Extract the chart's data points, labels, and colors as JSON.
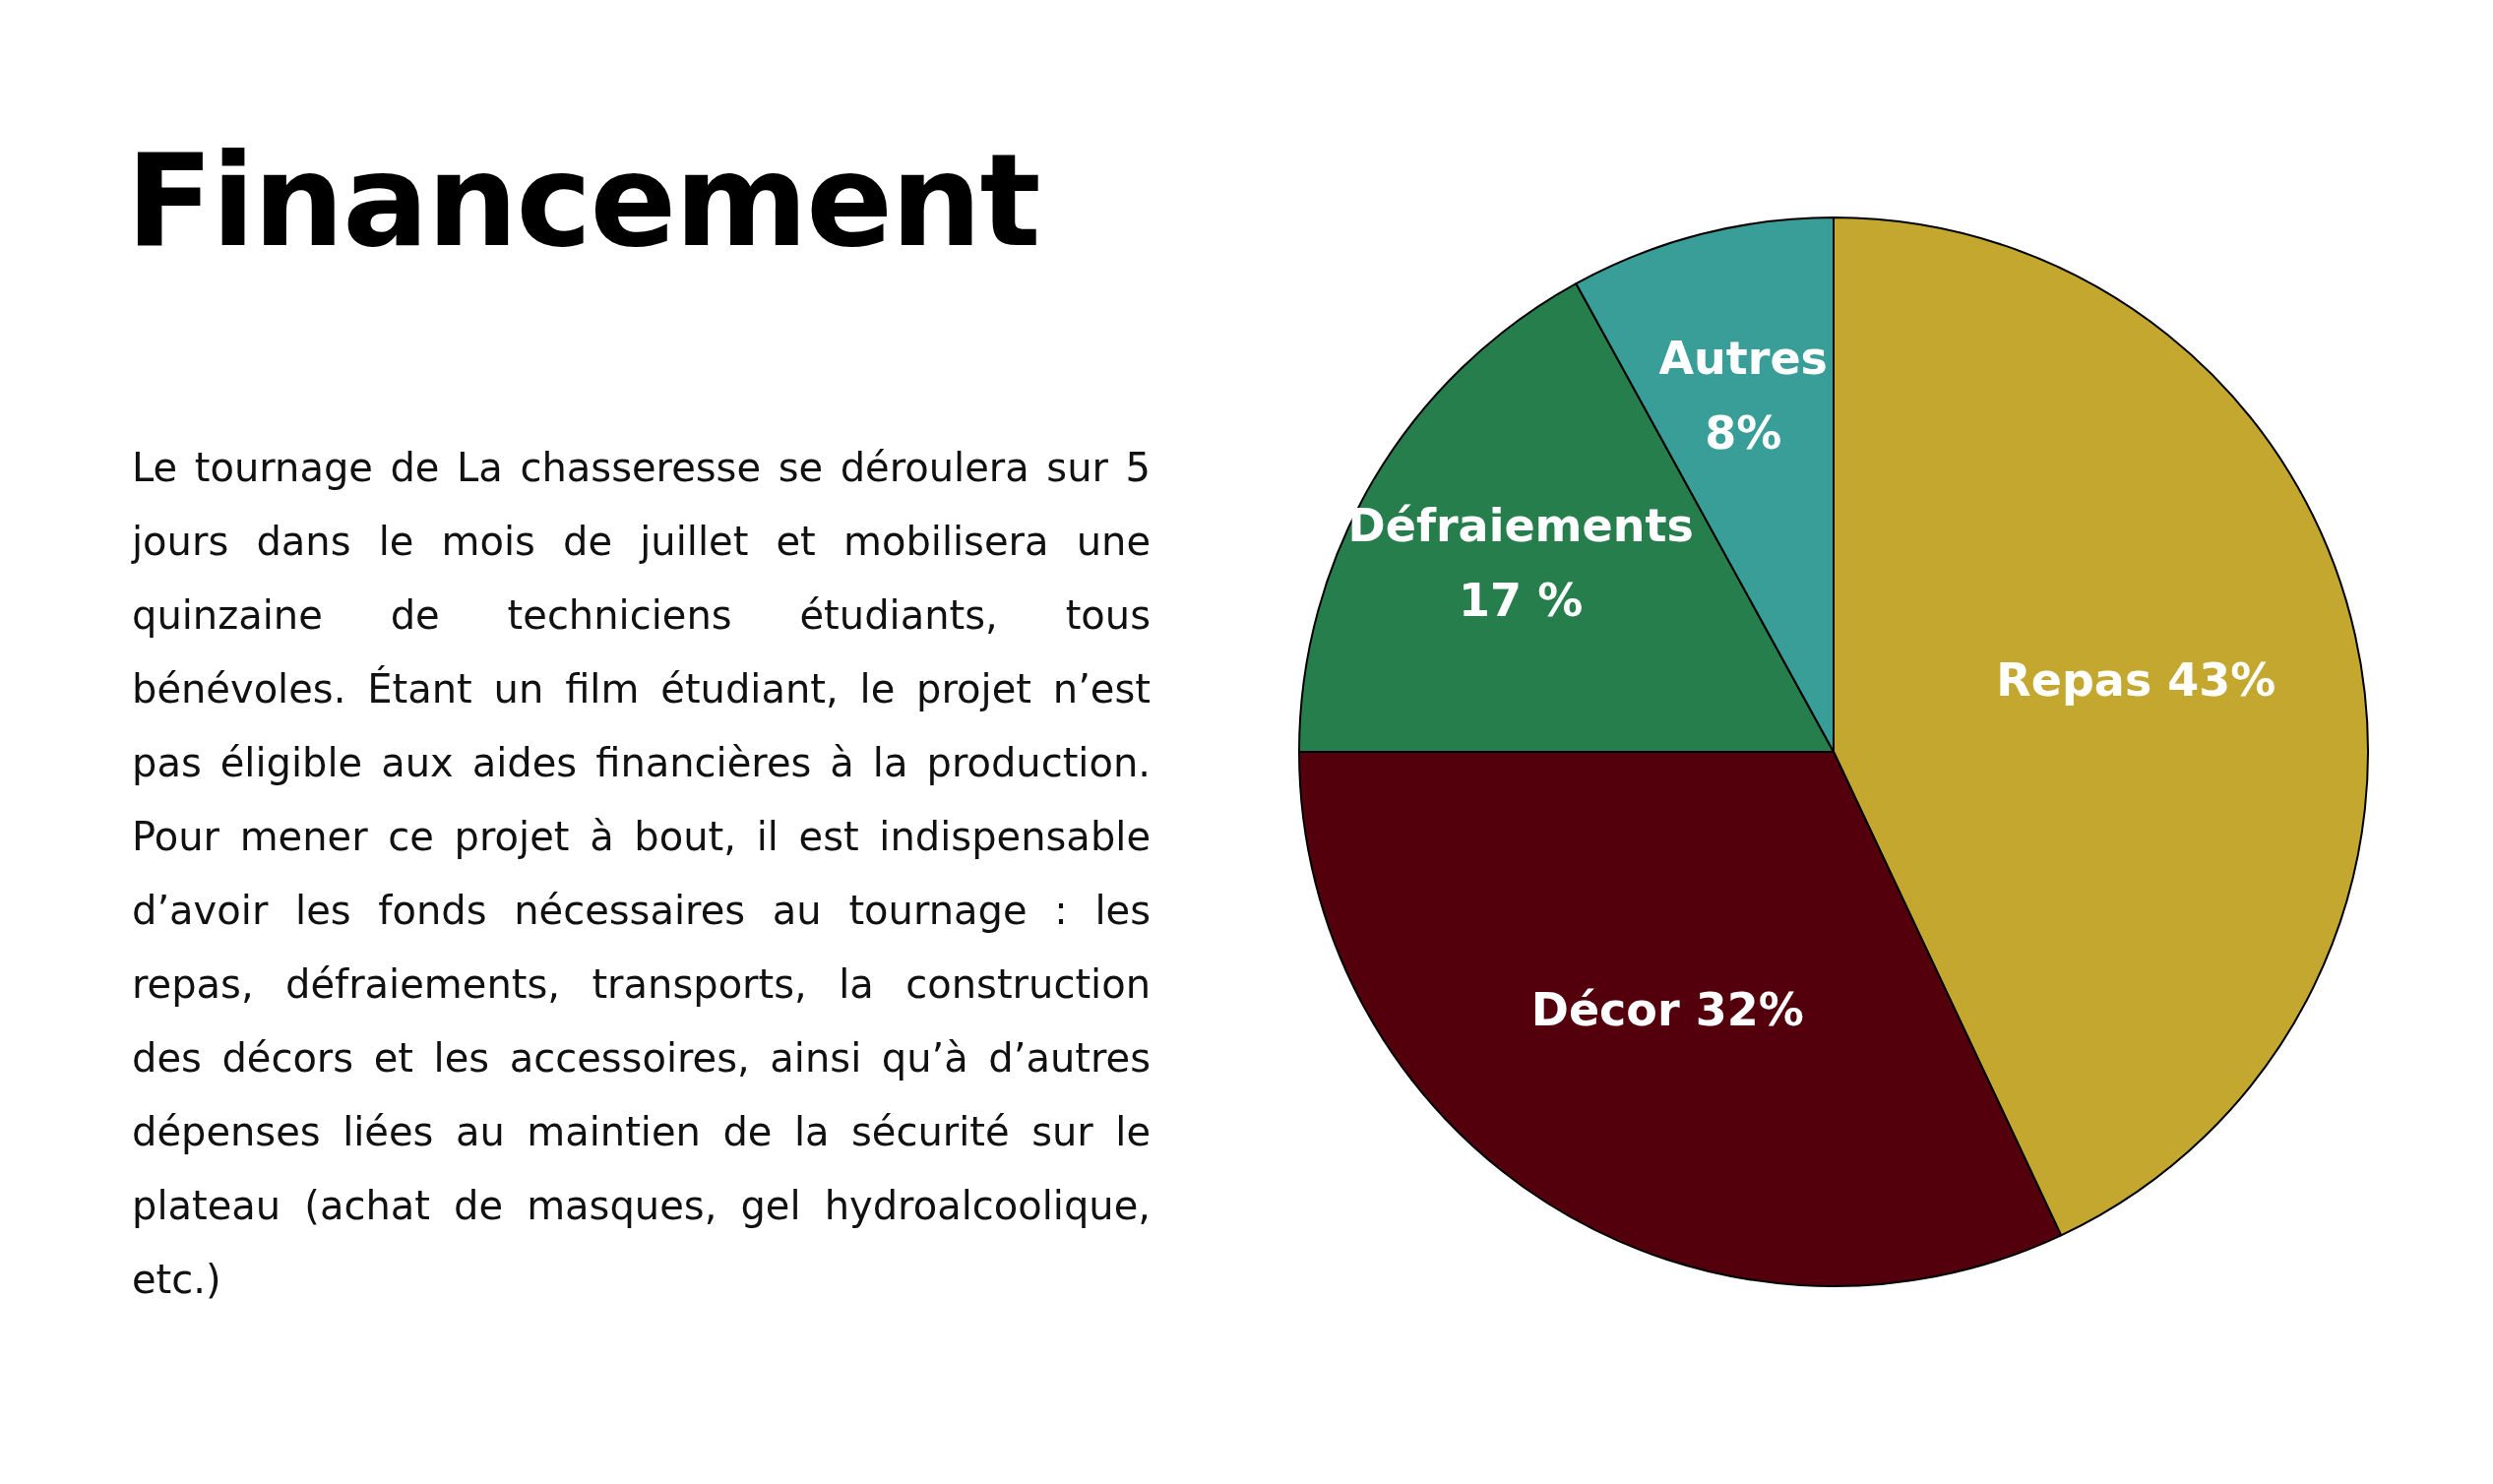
{
  "chart_data": {
    "type": "pie",
    "title": "Financement",
    "categories": [
      "Repas",
      "Décor",
      "Défraiements",
      "Autres"
    ],
    "values": [
      43,
      32,
      17,
      8
    ],
    "colors": [
      "#c3a72f",
      "#54000c",
      "#267e4c",
      "#3a9e98"
    ],
    "value_labels": [
      "43%",
      "32%",
      "17 %",
      "8%"
    ],
    "legend": false,
    "annotations": [
      "Le tournage de La chasseresse se déroulera sur 5 jours dans le mois de juillet et mobilisera une quinzaine de techniciens étudiants, tous bénévoles. Étant un film étudiant, le projet n’est pas éligible aux aides financières à la production. Pour mener ce projet à bout, il est indispensable d’avoir les fonds nécessaires au tournage : les repas, défraiements, transports, la construction des décors et les accessoires, ainsi qu’à d’autres dépenses liées au maintien de la sécurité sur le plateau (achat de masques, gel hydroalcoolique, etc.)"
    ]
  }
}
